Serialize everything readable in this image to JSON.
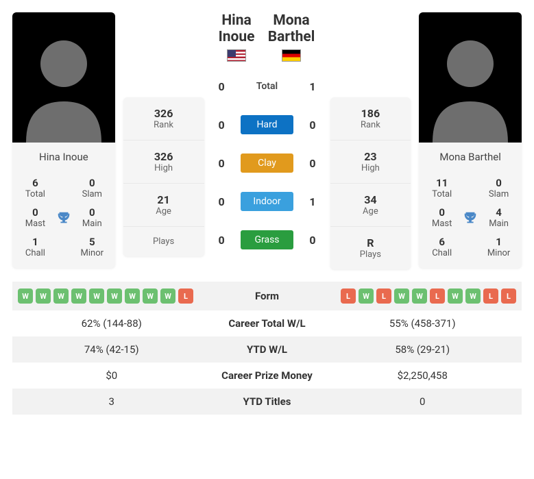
{
  "player1": {
    "name": "Hina Inoue",
    "flag_svg": "usa",
    "titles": {
      "total": {
        "value": "6",
        "label": "Total"
      },
      "slam": {
        "value": "0",
        "label": "Slam"
      },
      "mast": {
        "value": "0",
        "label": "Mast"
      },
      "main": {
        "value": "0",
        "label": "Main"
      },
      "chall": {
        "value": "1",
        "label": "Chall"
      },
      "minor": {
        "value": "5",
        "label": "Minor"
      }
    },
    "stats": {
      "rank": {
        "value": "326",
        "label": "Rank"
      },
      "high": {
        "value": "326",
        "label": "High"
      },
      "age": {
        "value": "21",
        "label": "Age"
      },
      "plays": {
        "value": "",
        "label": "Plays"
      }
    }
  },
  "player2": {
    "name": "Mona Barthel",
    "flag_svg": "germany",
    "titles": {
      "total": {
        "value": "11",
        "label": "Total"
      },
      "slam": {
        "value": "0",
        "label": "Slam"
      },
      "mast": {
        "value": "0",
        "label": "Mast"
      },
      "main": {
        "value": "4",
        "label": "Main"
      },
      "chall": {
        "value": "6",
        "label": "Chall"
      },
      "minor": {
        "value": "1",
        "label": "Minor"
      }
    },
    "stats": {
      "rank": {
        "value": "186",
        "label": "Rank"
      },
      "high": {
        "value": "23",
        "label": "High"
      },
      "age": {
        "value": "34",
        "label": "Age"
      },
      "plays": {
        "value": "R",
        "label": "Plays"
      }
    }
  },
  "h2h": {
    "rows": [
      {
        "p1": "0",
        "label": "Total",
        "p2": "1",
        "class": "surf-total"
      },
      {
        "p1": "0",
        "label": "Hard",
        "p2": "0",
        "class": "surf-hard"
      },
      {
        "p1": "0",
        "label": "Clay",
        "p2": "0",
        "class": "surf-clay"
      },
      {
        "p1": "0",
        "label": "Indoor",
        "p2": "1",
        "class": "surf-indoor"
      },
      {
        "p1": "0",
        "label": "Grass",
        "p2": "0",
        "class": "surf-grass"
      }
    ]
  },
  "compare": {
    "rows": [
      {
        "label": "Form",
        "type": "form",
        "p1": [
          "W",
          "W",
          "W",
          "W",
          "W",
          "W",
          "W",
          "W",
          "W",
          "L"
        ],
        "p2": [
          "L",
          "W",
          "L",
          "W",
          "W",
          "L",
          "W",
          "W",
          "L",
          "L"
        ]
      },
      {
        "label": "Career Total W/L",
        "p1": "62% (144-88)",
        "p2": "55% (458-371)"
      },
      {
        "label": "YTD W/L",
        "p1": "74% (42-15)",
        "p2": "58% (29-21)"
      },
      {
        "label": "Career Prize Money",
        "p1": "$0",
        "p2": "$2,250,458"
      },
      {
        "label": "YTD Titles",
        "p1": "3",
        "p2": "0"
      }
    ]
  },
  "colors": {
    "win_badge": "#6cc070",
    "loss_badge": "#e96a4f",
    "hard": "#0d72c4",
    "clay": "#e19a1d",
    "indoor": "#3aa0de",
    "grass": "#2a9d3f",
    "trophy": "#4a88c7"
  }
}
